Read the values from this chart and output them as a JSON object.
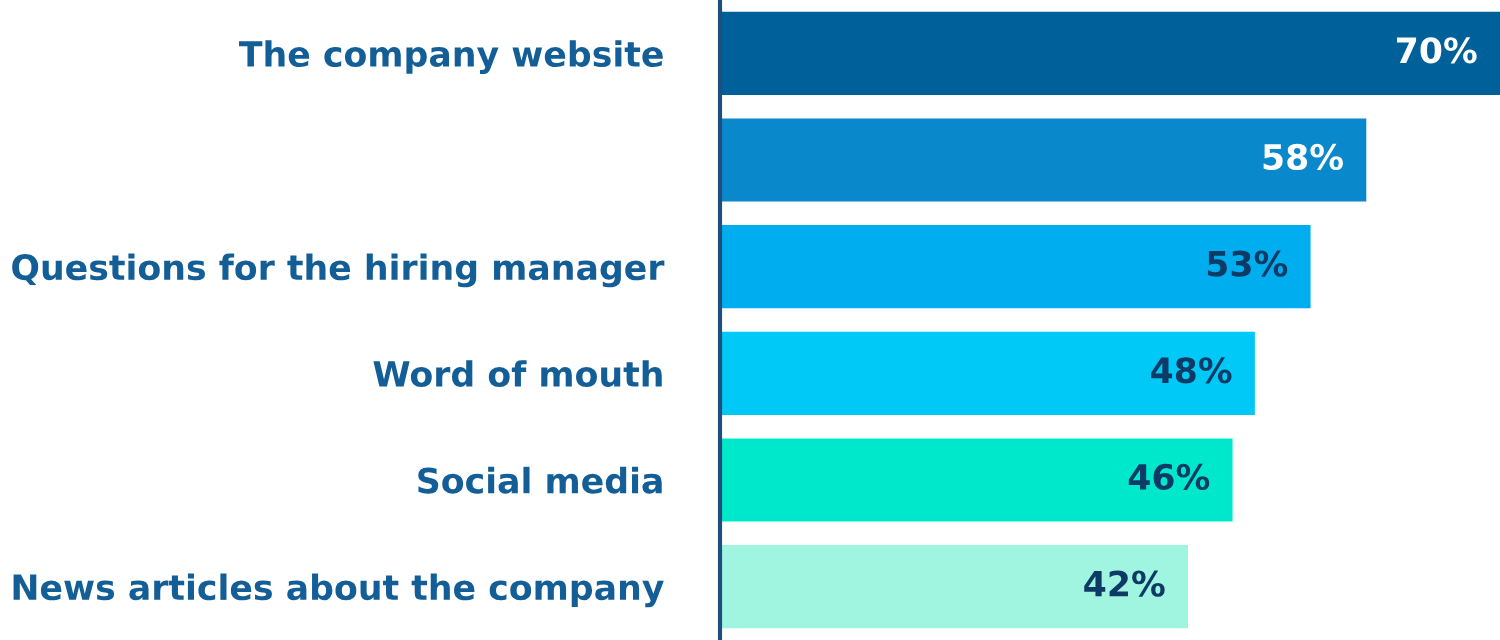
{
  "chart_data": {
    "type": "bar",
    "orientation": "horizontal",
    "categories": [
      "The company website",
      null,
      "Questions for the hiring manager",
      "Word of mouth",
      "Social media",
      "News articles about the company"
    ],
    "values": [
      70,
      58,
      53,
      48,
      46,
      42
    ],
    "colors": [
      "#00609a",
      "#0a88cc",
      "#00aeef",
      "#00c8f7",
      "#00e8cc",
      "#a0f5e0"
    ],
    "value_labels": [
      "70%",
      "58%",
      "53%",
      "48%",
      "46%",
      "42%"
    ],
    "grid": false,
    "legend": false
  }
}
